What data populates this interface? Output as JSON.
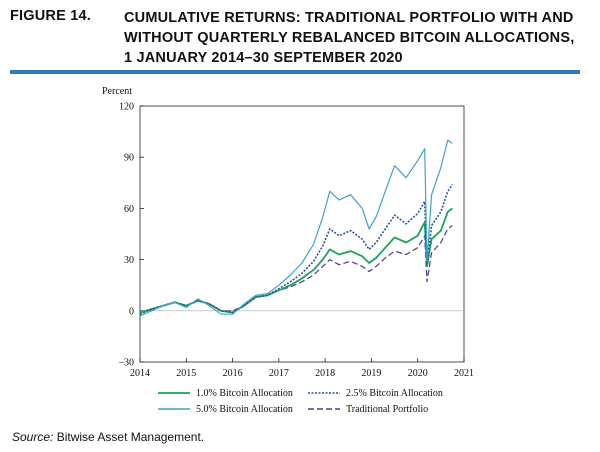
{
  "figure": {
    "number": "FIGURE 14.",
    "title": "CUMULATIVE RETURNS: TRADITIONAL PORTFOLIO WITH AND WITHOUT QUARTERLY REBALANCED BITCOIN ALLOCATIONS, 1 JANUARY 2014–30 SEPTEMBER 2020"
  },
  "source": {
    "label": "Source:",
    "text": "Bitwise Asset Management."
  },
  "chart_data": {
    "type": "line",
    "title": "",
    "xlabel": "",
    "ylabel": "Percent",
    "xlim": [
      2014,
      2021
    ],
    "ylim": [
      -30,
      120
    ],
    "yticks": [
      -30,
      0,
      30,
      60,
      90,
      120
    ],
    "xticks": [
      2014,
      2015,
      2016,
      2017,
      2018,
      2019,
      2020,
      2021
    ],
    "x": [
      2014.0,
      2014.25,
      2014.5,
      2014.75,
      2015.0,
      2015.25,
      2015.5,
      2015.75,
      2016.0,
      2016.25,
      2016.5,
      2016.75,
      2017.0,
      2017.25,
      2017.5,
      2017.75,
      2017.95,
      2018.1,
      2018.3,
      2018.55,
      2018.8,
      2018.95,
      2019.1,
      2019.3,
      2019.5,
      2019.75,
      2020.0,
      2020.15,
      2020.2,
      2020.3,
      2020.5,
      2020.65,
      2020.75
    ],
    "series": [
      {
        "name": "1.0% Bitcoin Allocation",
        "color": "#1aa35a",
        "dash": "solid",
        "width": 1.8,
        "values": [
          -1,
          1,
          3,
          5,
          3,
          6,
          4,
          0,
          -1,
          3,
          8,
          9,
          12,
          15,
          19,
          24,
          30,
          36,
          33,
          35,
          32,
          28,
          31,
          37,
          43,
          40,
          44,
          52,
          26,
          42,
          47,
          58,
          60
        ]
      },
      {
        "name": "2.5% Bitcoin Allocation",
        "color": "#2c4fa0",
        "dash": "2,1.5",
        "width": 1.6,
        "values": [
          -2,
          1,
          3,
          5,
          3,
          6,
          4,
          0,
          -1,
          3,
          8,
          9,
          13,
          17,
          22,
          29,
          38,
          48,
          44,
          47,
          42,
          36,
          40,
          48,
          56,
          51,
          57,
          64,
          27,
          50,
          58,
          70,
          74
        ]
      },
      {
        "name": "5.0% Bitcoin Allocation",
        "color": "#3fa3c6",
        "dash": "solid",
        "width": 1.2,
        "values": [
          -3,
          0,
          3,
          5,
          2,
          7,
          3,
          -2,
          -2,
          4,
          9,
          10,
          15,
          21,
          28,
          39,
          55,
          70,
          65,
          68,
          60,
          48,
          55,
          70,
          85,
          78,
          88,
          95,
          29,
          68,
          84,
          100,
          98
        ]
      },
      {
        "name": "Traditional Portfolio",
        "color": "#4e3c8c",
        "dash": "6,3",
        "width": 1.2,
        "values": [
          -1,
          1,
          3,
          5,
          3,
          6,
          4,
          0,
          0,
          3,
          8,
          9,
          12,
          14,
          17,
          21,
          26,
          30,
          27,
          29,
          26,
          23,
          26,
          31,
          35,
          33,
          37,
          44,
          17,
          34,
          40,
          48,
          50
        ]
      }
    ],
    "legend": "bottom"
  }
}
